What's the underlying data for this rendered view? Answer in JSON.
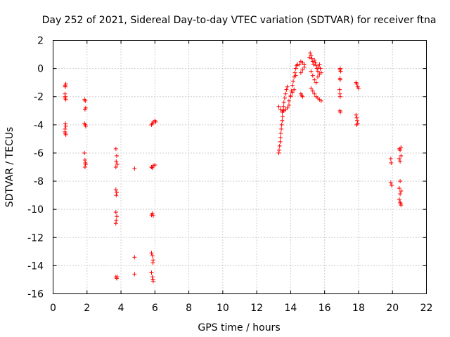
{
  "chart_data": {
    "type": "scatter",
    "title": "Day 252 of 2021, Sidereal Day-to-day VTEC variation (SDTVAR) for receiver ftna",
    "xlabel": "GPS time / hours",
    "ylabel": "SDTVAR / TECUs",
    "xlim": [
      0,
      22
    ],
    "ylim": [
      -16,
      2
    ],
    "xticks": [
      0,
      2,
      4,
      6,
      8,
      10,
      12,
      14,
      16,
      18,
      20,
      22
    ],
    "yticks": [
      -16,
      -14,
      -12,
      -10,
      -8,
      -6,
      -4,
      -2,
      0,
      2
    ],
    "x_tick_labels": [
      "0",
      "2",
      "4",
      "6",
      "8",
      "10",
      "12",
      "14",
      "16",
      "18",
      "20",
      "22"
    ],
    "y_tick_labels": [
      "-16",
      "-14",
      "-12",
      "-10",
      "-8",
      "-6",
      "-4",
      "-2",
      "0",
      "2"
    ],
    "grid": true,
    "marker": "+",
    "color": "#ff0000",
    "series": [
      {
        "name": "SDTVAR",
        "points": [
          [
            0.7,
            -1.2
          ],
          [
            0.72,
            -1.3
          ],
          [
            0.75,
            -1.1
          ],
          [
            0.7,
            -1.8
          ],
          [
            0.72,
            -2.0
          ],
          [
            0.75,
            -2.2
          ],
          [
            0.7,
            -2.1
          ],
          [
            0.72,
            -3.9
          ],
          [
            0.75,
            -4.1
          ],
          [
            0.7,
            -4.3
          ],
          [
            0.72,
            -4.6
          ],
          [
            0.75,
            -4.7
          ],
          [
            0.7,
            -4.5
          ],
          [
            1.85,
            -2.2
          ],
          [
            1.9,
            -2.3
          ],
          [
            1.92,
            -2.8
          ],
          [
            1.88,
            -2.9
          ],
          [
            1.85,
            -3.9
          ],
          [
            1.9,
            -4.0
          ],
          [
            1.92,
            -4.1
          ],
          [
            1.85,
            -6.0
          ],
          [
            1.88,
            -6.5
          ],
          [
            1.9,
            -6.7
          ],
          [
            1.92,
            -6.8
          ],
          [
            1.88,
            -7.0
          ],
          [
            3.7,
            -5.7
          ],
          [
            3.75,
            -6.2
          ],
          [
            3.72,
            -6.6
          ],
          [
            3.78,
            -6.8
          ],
          [
            3.7,
            -7.0
          ],
          [
            3.7,
            -8.6
          ],
          [
            3.75,
            -8.8
          ],
          [
            3.72,
            -9.0
          ],
          [
            3.7,
            -10.2
          ],
          [
            3.75,
            -10.5
          ],
          [
            3.72,
            -10.8
          ],
          [
            3.7,
            -11.0
          ],
          [
            3.7,
            -14.8
          ],
          [
            3.75,
            -14.9
          ],
          [
            3.78,
            -14.8
          ],
          [
            4.8,
            -7.1
          ],
          [
            4.8,
            -13.4
          ],
          [
            4.8,
            -14.6
          ],
          [
            5.8,
            -4.0
          ],
          [
            5.85,
            -3.9
          ],
          [
            5.9,
            -3.8
          ],
          [
            6.0,
            -3.7
          ],
          [
            6.05,
            -3.8
          ],
          [
            5.8,
            -7.0
          ],
          [
            5.9,
            -6.9
          ],
          [
            6.0,
            -6.85
          ],
          [
            5.85,
            -7.05
          ],
          [
            5.8,
            -10.4
          ],
          [
            5.85,
            -10.3
          ],
          [
            5.9,
            -10.45
          ],
          [
            5.8,
            -13.1
          ],
          [
            5.85,
            -13.3
          ],
          [
            5.9,
            -13.6
          ],
          [
            5.88,
            -13.8
          ],
          [
            5.8,
            -14.5
          ],
          [
            5.85,
            -14.8
          ],
          [
            5.88,
            -15.0
          ],
          [
            5.9,
            -15.1
          ],
          [
            13.3,
            -6.0
          ],
          [
            13.32,
            -5.8
          ],
          [
            13.35,
            -5.5
          ],
          [
            13.38,
            -5.2
          ],
          [
            13.4,
            -4.9
          ],
          [
            13.42,
            -4.6
          ],
          [
            13.45,
            -4.3
          ],
          [
            13.47,
            -4.0
          ],
          [
            13.5,
            -3.7
          ],
          [
            13.52,
            -3.4
          ],
          [
            13.55,
            -3.0
          ],
          [
            13.58,
            -2.7
          ],
          [
            13.6,
            -2.4
          ],
          [
            13.65,
            -2.1
          ],
          [
            13.7,
            -1.8
          ],
          [
            13.75,
            -1.5
          ],
          [
            13.8,
            -1.3
          ],
          [
            13.3,
            -2.7
          ],
          [
            13.4,
            -2.9
          ],
          [
            13.5,
            -3.1
          ],
          [
            13.6,
            -3.0
          ],
          [
            13.7,
            -2.9
          ],
          [
            13.8,
            -2.8
          ],
          [
            13.9,
            -2.6
          ],
          [
            13.9,
            -2.3
          ],
          [
            14.0,
            -2.0
          ],
          [
            14.05,
            -1.6
          ],
          [
            14.1,
            -1.2
          ],
          [
            14.15,
            -0.9
          ],
          [
            14.2,
            -0.6
          ],
          [
            14.25,
            -0.3
          ],
          [
            14.3,
            0.0
          ],
          [
            14.35,
            0.2
          ],
          [
            14.4,
            0.3
          ],
          [
            14.0,
            -1.9
          ],
          [
            14.1,
            -1.7
          ],
          [
            14.2,
            -1.5
          ],
          [
            14.3,
            -0.5
          ],
          [
            14.6,
            -1.8
          ],
          [
            14.65,
            -1.9
          ],
          [
            14.7,
            -2.0
          ],
          [
            14.6,
            -0.3
          ],
          [
            14.7,
            -0.1
          ],
          [
            14.8,
            0.1
          ],
          [
            14.5,
            0.3
          ],
          [
            14.6,
            0.5
          ],
          [
            14.7,
            0.4
          ],
          [
            14.8,
            0.3
          ],
          [
            15.1,
            0.8
          ],
          [
            15.15,
            1.1
          ],
          [
            15.2,
            0.9
          ],
          [
            15.25,
            0.7
          ],
          [
            15.3,
            0.5
          ],
          [
            15.35,
            0.3
          ],
          [
            15.4,
            0.6
          ],
          [
            15.45,
            0.4
          ],
          [
            15.5,
            0.2
          ],
          [
            15.55,
            0.0
          ],
          [
            15.6,
            -0.2
          ],
          [
            15.65,
            0.1
          ],
          [
            15.7,
            0.3
          ],
          [
            15.75,
            0.0
          ],
          [
            15.8,
            -0.3
          ],
          [
            15.2,
            -0.2
          ],
          [
            15.3,
            -0.5
          ],
          [
            15.4,
            -0.8
          ],
          [
            15.5,
            -1.0
          ],
          [
            15.2,
            -1.4
          ],
          [
            15.3,
            -1.6
          ],
          [
            15.4,
            -1.8
          ],
          [
            15.5,
            -2.0
          ],
          [
            15.6,
            -2.1
          ],
          [
            15.7,
            -2.2
          ],
          [
            15.8,
            -2.3
          ],
          [
            15.6,
            -0.6
          ],
          [
            15.7,
            -0.4
          ],
          [
            16.9,
            -0.1
          ],
          [
            16.92,
            0.0
          ],
          [
            16.95,
            -0.2
          ],
          [
            16.9,
            -0.7
          ],
          [
            16.92,
            -0.8
          ],
          [
            16.88,
            -1.5
          ],
          [
            16.9,
            -1.8
          ],
          [
            16.92,
            -2.0
          ],
          [
            16.9,
            -3.0
          ],
          [
            16.93,
            -3.1
          ],
          [
            17.85,
            -1.0
          ],
          [
            17.9,
            -1.1
          ],
          [
            17.95,
            -1.3
          ],
          [
            18.0,
            -1.4
          ],
          [
            17.85,
            -3.3
          ],
          [
            17.9,
            -3.5
          ],
          [
            17.92,
            -3.7
          ],
          [
            17.95,
            -3.9
          ],
          [
            17.88,
            -4.0
          ],
          [
            19.9,
            -6.4
          ],
          [
            19.92,
            -6.7
          ],
          [
            19.9,
            -8.1
          ],
          [
            19.95,
            -8.3
          ],
          [
            20.4,
            -5.7
          ],
          [
            20.45,
            -5.8
          ],
          [
            20.5,
            -5.6
          ],
          [
            20.4,
            -6.4
          ],
          [
            20.45,
            -6.6
          ],
          [
            20.5,
            -6.2
          ],
          [
            20.45,
            -8.0
          ],
          [
            20.4,
            -8.5
          ],
          [
            20.5,
            -8.7
          ],
          [
            20.45,
            -8.9
          ],
          [
            20.4,
            -9.3
          ],
          [
            20.45,
            -9.5
          ],
          [
            20.5,
            -9.7
          ],
          [
            20.48,
            -9.6
          ]
        ]
      }
    ]
  }
}
